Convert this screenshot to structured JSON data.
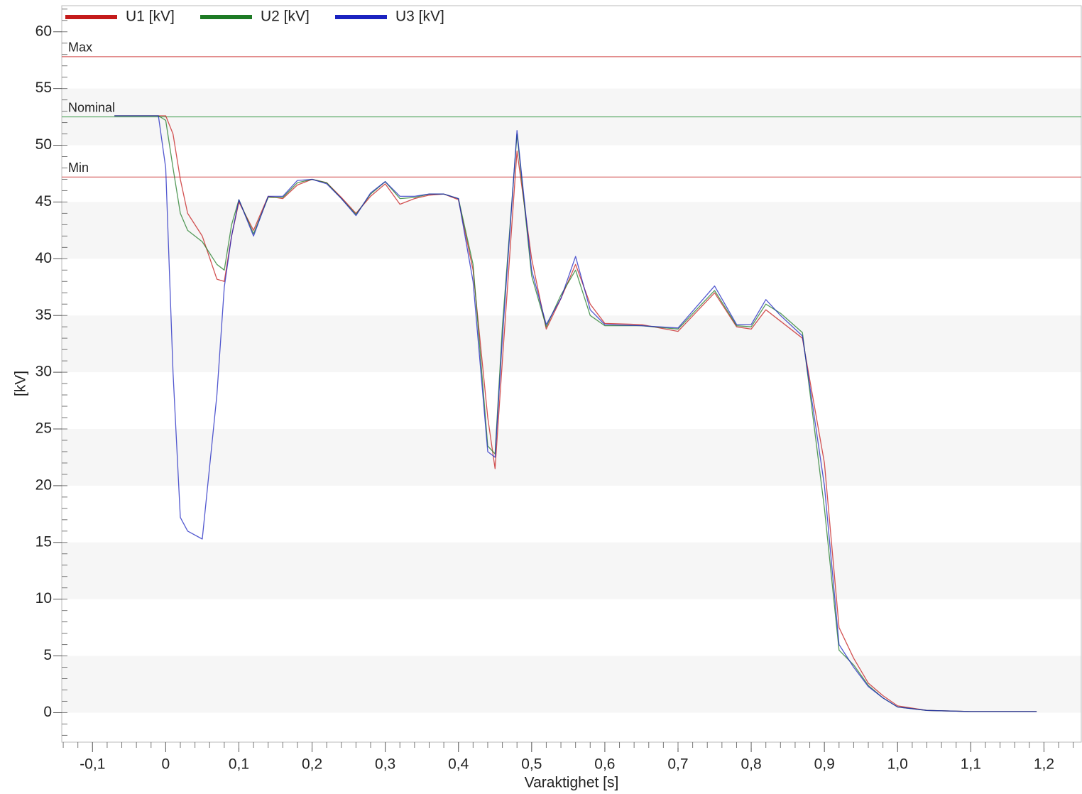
{
  "chart_data": {
    "type": "line",
    "x_label": "Varaktighet [s]",
    "y_label": "[kV]",
    "x": [
      -0.07,
      -0.01,
      0,
      0.01,
      0.02,
      0.03,
      0.05,
      0.07,
      0.08,
      0.09,
      0.1,
      0.12,
      0.14,
      0.16,
      0.18,
      0.2,
      0.22,
      0.24,
      0.26,
      0.28,
      0.3,
      0.32,
      0.34,
      0.36,
      0.38,
      0.4,
      0.42,
      0.44,
      0.45,
      0.46,
      0.48,
      0.5,
      0.52,
      0.54,
      0.56,
      0.58,
      0.6,
      0.65,
      0.7,
      0.75,
      0.78,
      0.8,
      0.82,
      0.84,
      0.87,
      0.9,
      0.92,
      0.94,
      0.96,
      0.98,
      1.0,
      1.04,
      1.1,
      1.19
    ],
    "series": [
      {
        "name": "U1 [kV]",
        "color": "#c41a1a",
        "values": [
          52.6,
          52.6,
          52.6,
          51,
          47,
          44,
          42,
          38.2,
          38,
          42,
          45,
          42.5,
          45.5,
          45.3,
          46.5,
          47,
          46.7,
          45.4,
          44,
          45.5,
          46.6,
          44.8,
          45.3,
          45.6,
          45.7,
          45.2,
          39,
          26,
          21.5,
          31,
          49.5,
          40,
          33.8,
          36.5,
          39.5,
          36,
          34.3,
          34.2,
          33.6,
          37,
          34,
          33.8,
          35.5,
          34.5,
          33,
          22,
          7.5,
          4.8,
          2.6,
          1.5,
          0.6,
          0.2,
          0.1,
          0.1
        ]
      },
      {
        "name": "U2 [kV]",
        "color": "#1d7a24",
        "values": [
          52.6,
          52.6,
          52.2,
          48,
          44,
          42.5,
          41.5,
          39.5,
          39,
          43,
          45.2,
          42.2,
          45.4,
          45.4,
          46.7,
          47,
          46.7,
          45.3,
          43.9,
          45.7,
          46.8,
          45.3,
          45.4,
          45.7,
          45.7,
          45.3,
          39.5,
          23.5,
          22.8,
          34,
          51,
          38.5,
          34,
          36.8,
          39,
          35,
          34.1,
          34.1,
          33.8,
          37.2,
          34.1,
          34,
          36,
          35.2,
          33.5,
          18,
          5.5,
          4.2,
          2.4,
          1.3,
          0.5,
          0.2,
          0.1,
          0.1
        ]
      },
      {
        "name": "U3 [kV]",
        "color": "#1a22c0",
        "values": [
          52.6,
          52.6,
          48,
          30,
          17.2,
          16,
          15.3,
          28,
          37.5,
          42,
          45.2,
          42,
          45.5,
          45.5,
          46.9,
          47,
          46.6,
          45.3,
          43.8,
          45.8,
          46.8,
          45.5,
          45.5,
          45.7,
          45.7,
          45.3,
          38,
          23,
          22.5,
          33,
          51.3,
          39,
          34.2,
          36.5,
          40.2,
          35.5,
          34.2,
          34.1,
          33.9,
          37.6,
          34.2,
          34.2,
          36.4,
          35,
          33.2,
          20,
          6,
          4,
          2.3,
          1.3,
          0.5,
          0.2,
          0.1,
          0.1
        ]
      }
    ],
    "reference_lines": [
      {
        "label": "Max",
        "value": 57.8,
        "color": "#d04848"
      },
      {
        "label": "Nominal",
        "value": 52.5,
        "color": "#3a9a4a"
      },
      {
        "label": "Min",
        "value": 47.2,
        "color": "#d04848"
      }
    ],
    "xlim": [
      -0.142,
      1.251
    ],
    "ylim": [
      -2.6,
      62.3
    ],
    "xticks": [
      {
        "value": -0.1,
        "label": "-0,1"
      },
      0,
      {
        "value": 0.1,
        "label": "0,1"
      },
      {
        "value": 0.2,
        "label": "0,2"
      },
      {
        "value": 0.3,
        "label": "0,3"
      },
      {
        "value": 0.4,
        "label": "0,4"
      },
      {
        "value": 0.5,
        "label": "0,5"
      },
      {
        "value": 0.6,
        "label": "0,6"
      },
      {
        "value": 0.7,
        "label": "0,7"
      },
      {
        "value": 0.8,
        "label": "0,8"
      },
      {
        "value": 0.9,
        "label": "0,9"
      },
      {
        "value": 1.0,
        "label": "1,0"
      },
      {
        "value": 1.1,
        "label": "1,1"
      },
      {
        "value": 1.2,
        "label": "1,2"
      }
    ],
    "yticks": [
      0,
      5,
      10,
      15,
      20,
      25,
      30,
      35,
      40,
      45,
      50,
      55,
      60
    ],
    "bands": true,
    "legend": "top-left"
  }
}
